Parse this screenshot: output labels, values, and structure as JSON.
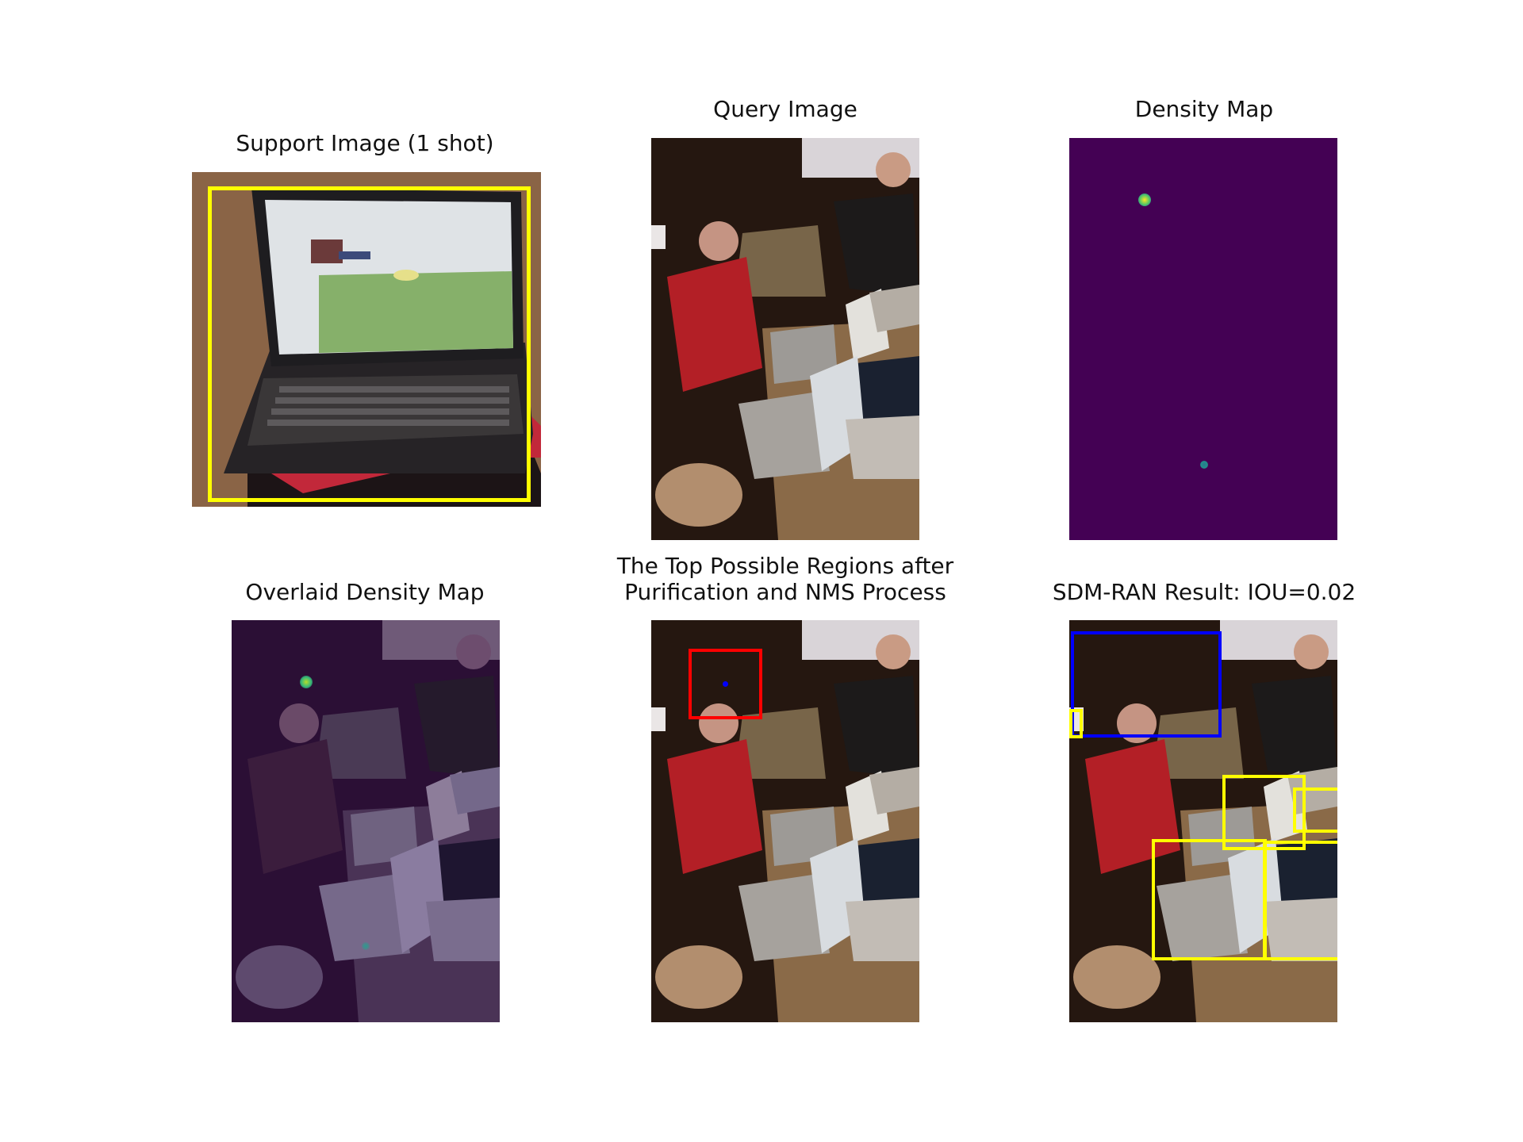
{
  "panels": {
    "support": {
      "title": "Support Image (1 shot)"
    },
    "query": {
      "title": "Query Image"
    },
    "density": {
      "title": "Density Map"
    },
    "overlaid": {
      "title": "Overlaid Density Map"
    },
    "regions": {
      "title_line1": "The Top Possible Regions after",
      "title_line2": "Purification and NMS Process"
    },
    "result": {
      "title": "SDM-RAN Result: IOU=0.02"
    }
  },
  "colors": {
    "support_box": "#ffff00",
    "region_box": "#ff0000",
    "region_point": "#0000ff",
    "prediction_box": "#ffff00",
    "ground_truth_box": "#0000ff",
    "density_background": "#440154",
    "density_peak": "#fde725"
  }
}
